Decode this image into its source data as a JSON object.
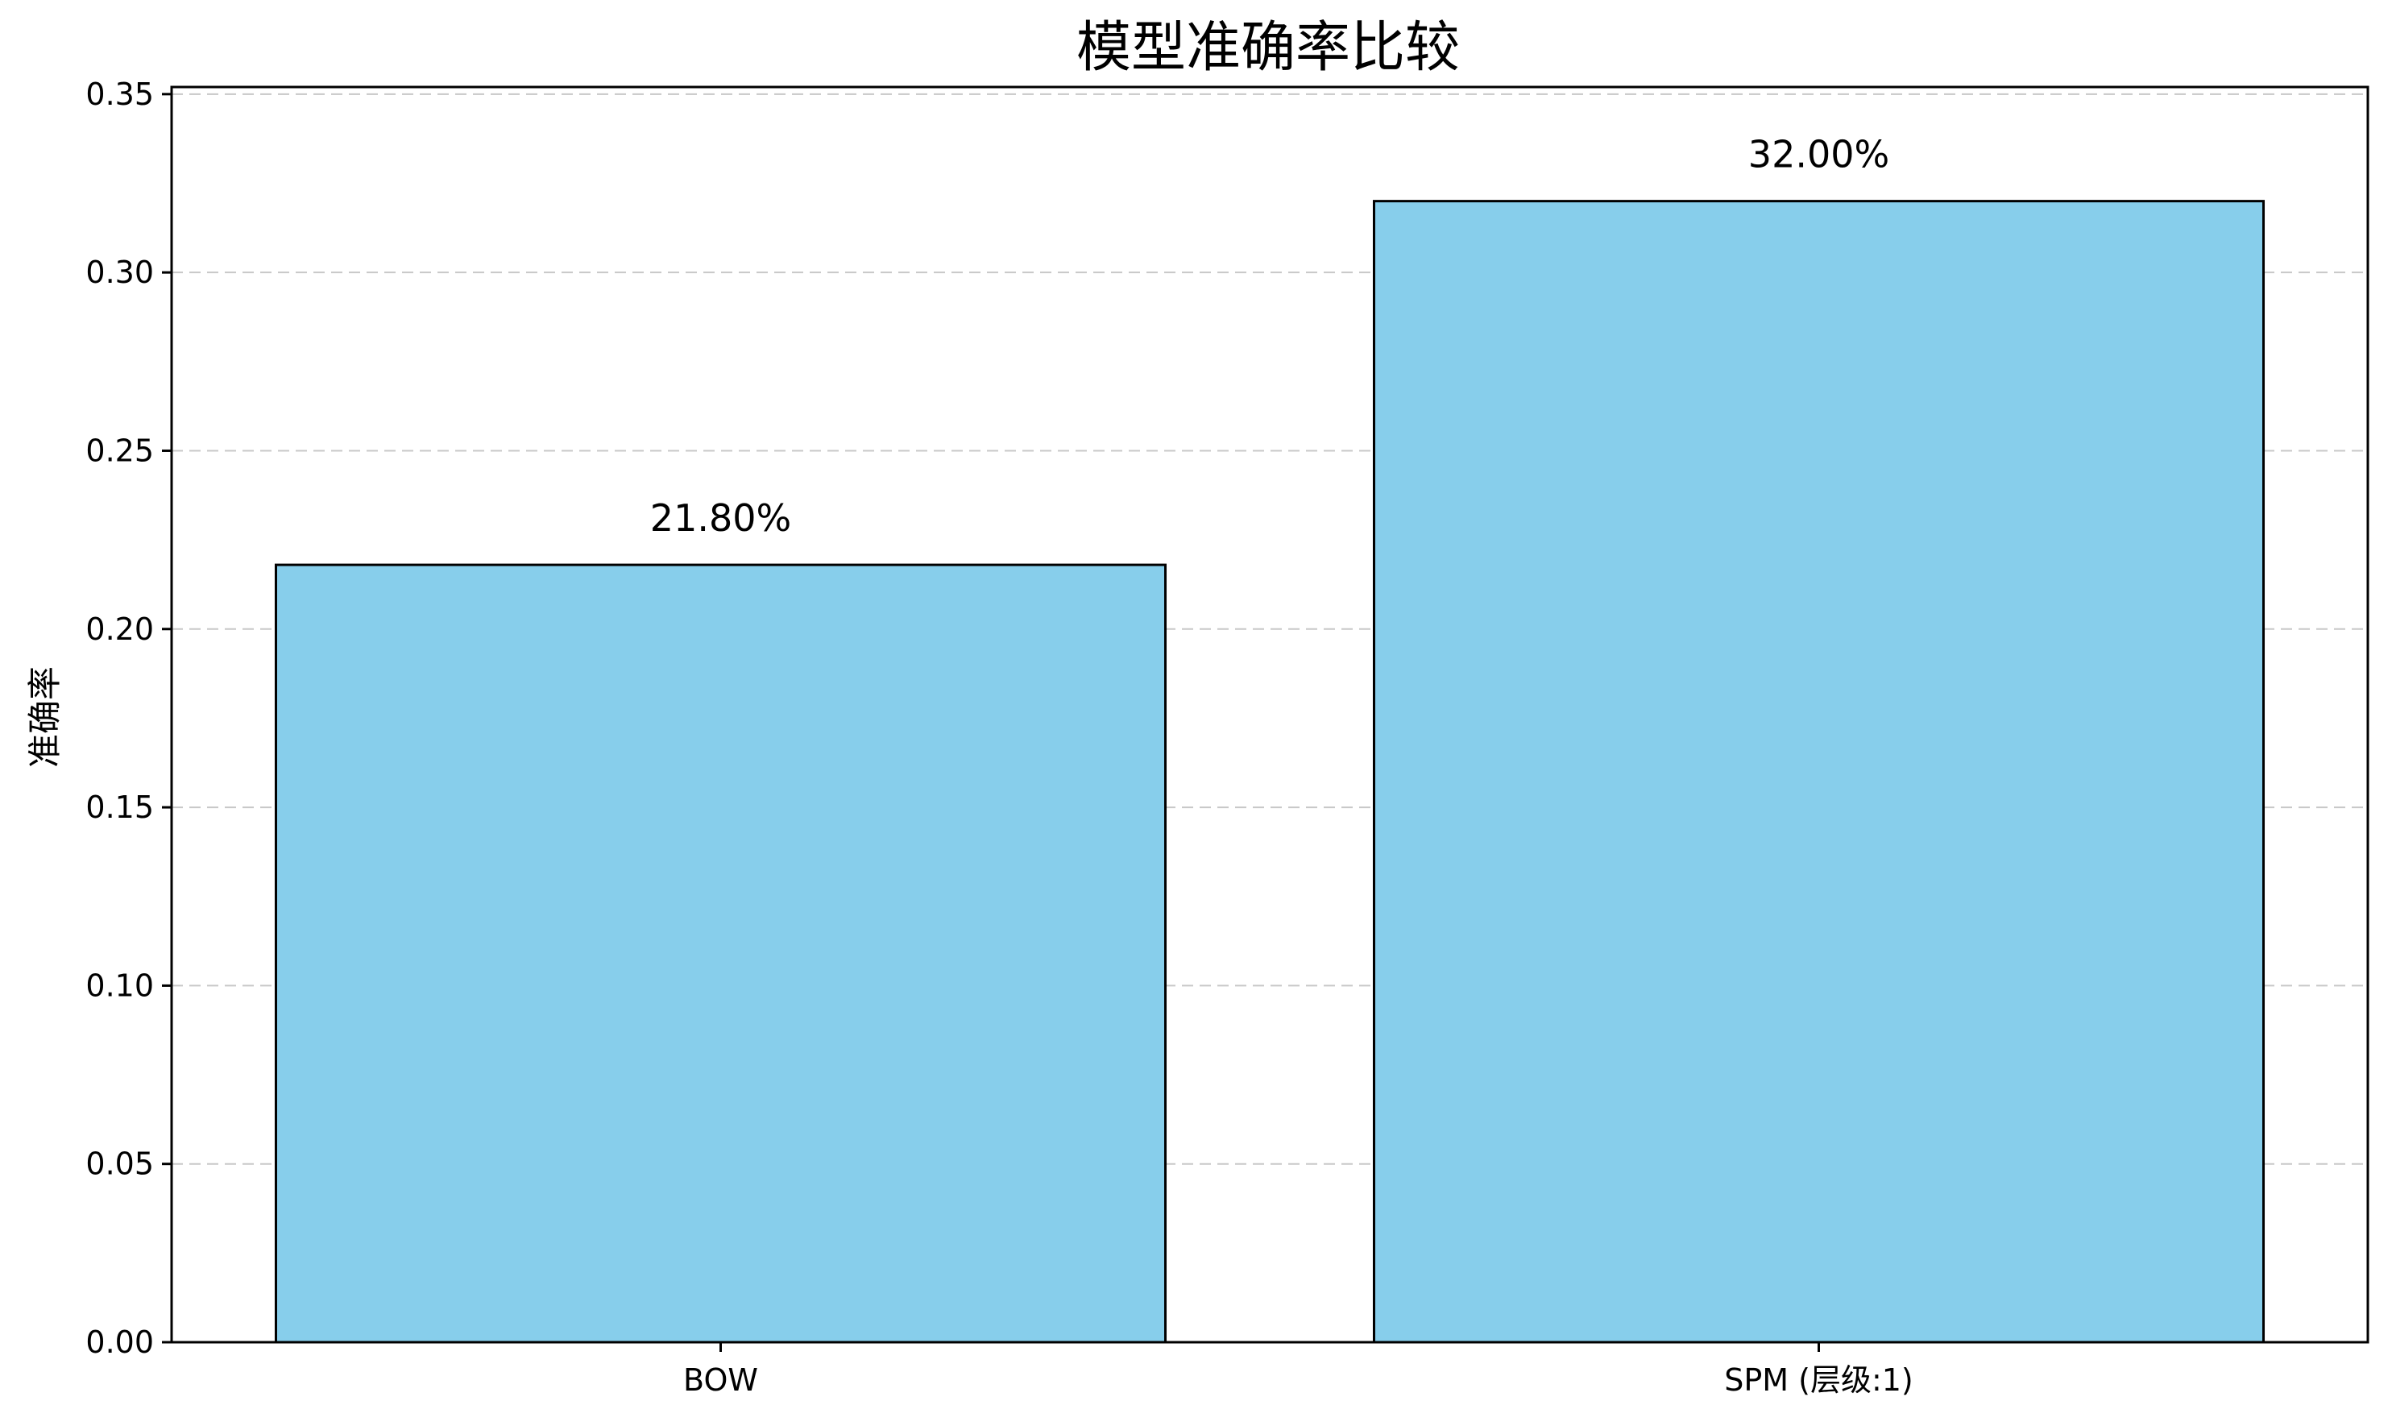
{
  "chart_data": {
    "type": "bar",
    "title": "模型准确率比较",
    "xlabel": "",
    "ylabel": "准确率",
    "categories": [
      "BOW",
      "SPM (层级:1)"
    ],
    "values": [
      0.218,
      0.32
    ],
    "data_labels": [
      "21.80%",
      "32.00%"
    ],
    "ylim": [
      0,
      0.352
    ],
    "yticks": [
      0.0,
      0.05,
      0.1,
      0.15,
      0.2,
      0.25,
      0.3,
      0.35
    ],
    "ytick_labels": [
      "0.00",
      "0.05",
      "0.10",
      "0.15",
      "0.20",
      "0.25",
      "0.30",
      "0.35"
    ],
    "grid": "y-dashed",
    "legend": "none",
    "colors": {
      "bar_fill": "#87CEEB",
      "bar_edge": "#000000",
      "grid": "#c8c8c8",
      "axes": "#000000"
    }
  }
}
